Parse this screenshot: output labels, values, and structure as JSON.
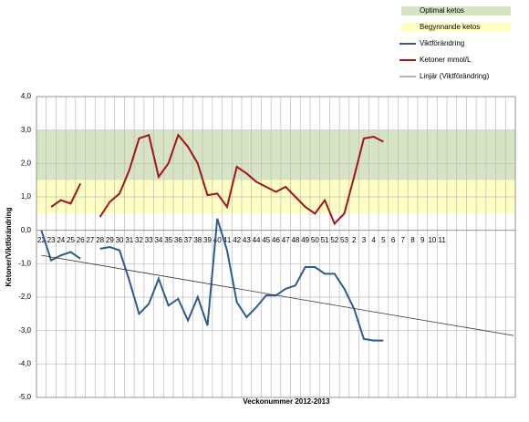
{
  "chart_data": {
    "type": "line",
    "x_label": "Veckonummer 2012-2013",
    "y_label": "Ketoner/Viktförändring",
    "categories": [
      "22",
      "23",
      "24",
      "25",
      "26",
      "27",
      "28",
      "29",
      "30",
      "31",
      "32",
      "33",
      "34",
      "35",
      "36",
      "37",
      "38",
      "39",
      "40",
      "41",
      "42",
      "43",
      "44",
      "45",
      "46",
      "47",
      "48",
      "49",
      "50",
      "51",
      "52",
      "53",
      "2",
      "3",
      "4",
      "5",
      "6",
      "7",
      "8",
      "9",
      "10",
      "11",
      null,
      null,
      null,
      null,
      null,
      null,
      null
    ],
    "bands": [
      {
        "name": "Optimal ketos",
        "color": "#d7e4c4",
        "from": 1.5,
        "to": 3.0
      },
      {
        "name": "Begynnande ketos",
        "color": "#ffffc4",
        "from": 0.5,
        "to": 1.5
      }
    ],
    "series": [
      {
        "name": "Viktförändring",
        "color": "#2e5b8e",
        "values": [
          0.0,
          -0.9,
          -0.75,
          -0.65,
          -0.85,
          null,
          -0.55,
          -0.5,
          -0.6,
          -1.5,
          -2.5,
          -2.2,
          -1.45,
          -2.25,
          -2.05,
          -2.7,
          -2.0,
          -2.85,
          0.35,
          -0.6,
          -2.15,
          -2.6,
          -2.3,
          -1.95,
          -1.95,
          -1.75,
          -1.65,
          -1.1,
          -1.1,
          -1.3,
          -1.3,
          -1.75,
          -2.35,
          -3.25,
          -3.3,
          -3.3,
          null,
          null,
          null,
          null,
          null,
          null,
          null,
          null,
          null,
          null,
          null,
          null,
          null
        ]
      },
      {
        "name": "Ketoner mmol/L",
        "color": "#a0151a",
        "values": [
          null,
          0.7,
          0.9,
          0.8,
          1.4,
          null,
          0.4,
          0.85,
          1.1,
          1.8,
          2.75,
          2.85,
          1.6,
          2.0,
          2.85,
          2.5,
          2.0,
          1.05,
          1.1,
          0.7,
          1.9,
          1.7,
          1.45,
          1.3,
          1.15,
          1.3,
          1.0,
          0.7,
          0.5,
          0.9,
          0.2,
          0.5,
          1.6,
          2.75,
          2.8,
          2.65,
          null,
          null,
          null,
          null,
          null,
          null,
          null,
          null,
          null,
          null,
          null,
          null,
          null
        ]
      }
    ],
    "trend": {
      "name": "Linjär (Viktförändring)",
      "color": "#333333",
      "start": -0.75,
      "end": -3.15
    },
    "ylim": [
      -5,
      4
    ],
    "yticks": [
      {
        "value": -5,
        "label": "-5,0"
      },
      {
        "value": -4,
        "label": "-4,0"
      },
      {
        "value": -3,
        "label": "-3,0"
      },
      {
        "value": -2,
        "label": "-2,0"
      },
      {
        "value": -1,
        "label": "-1,0"
      },
      {
        "value": 0,
        "label": "0,0"
      },
      {
        "value": 1,
        "label": "1,0"
      },
      {
        "value": 2,
        "label": "2,0"
      },
      {
        "value": 3,
        "label": "3,0"
      },
      {
        "value": 4,
        "label": "4,0"
      }
    ],
    "grid": true
  }
}
